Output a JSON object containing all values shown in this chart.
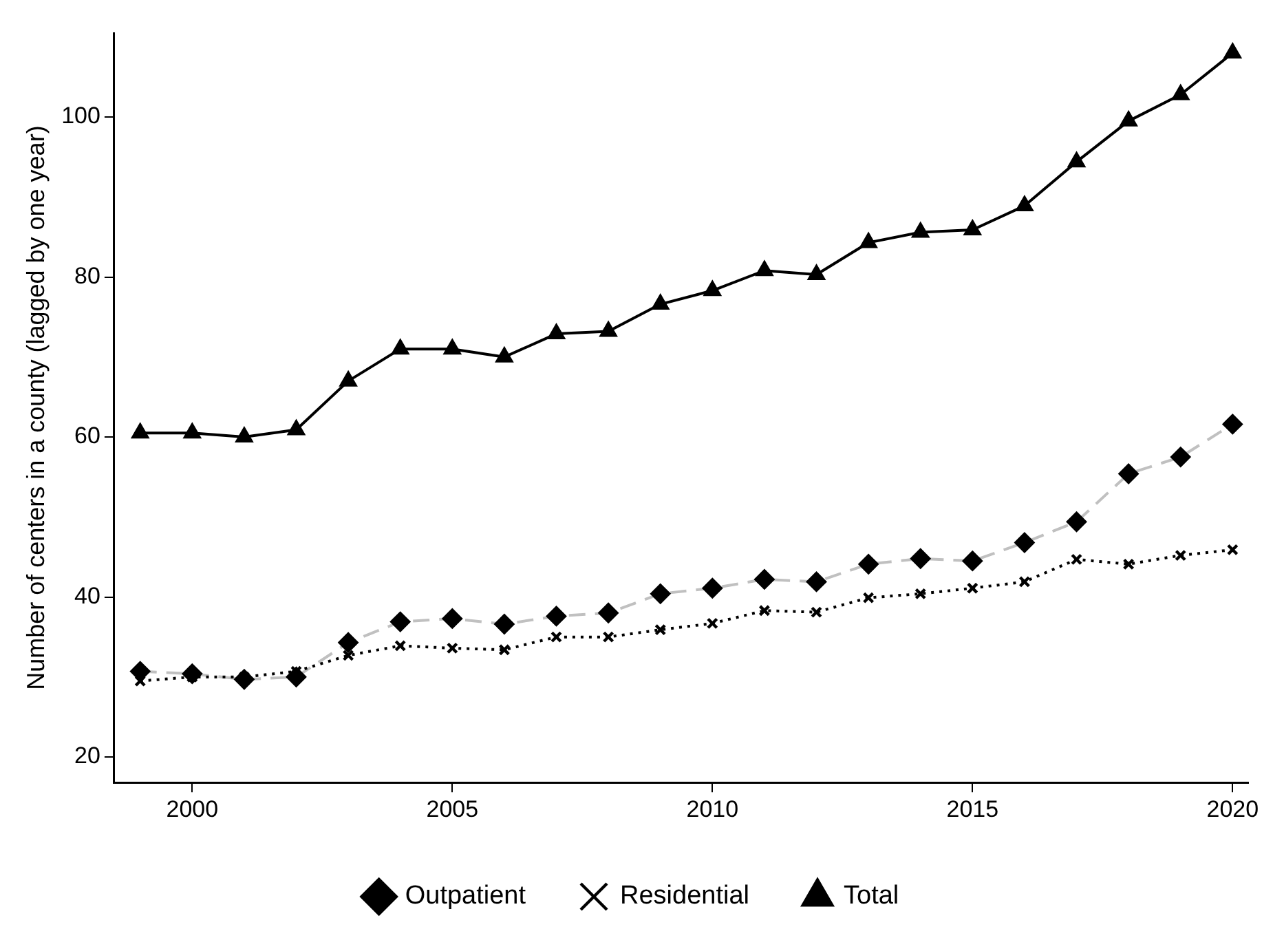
{
  "chart_data": {
    "type": "line",
    "ylabel": "Number of centers in a county (lagged by one year)",
    "x": [
      1999,
      2000,
      2001,
      2002,
      2003,
      2004,
      2005,
      2006,
      2007,
      2008,
      2009,
      2010,
      2011,
      2012,
      2013,
      2014,
      2015,
      2016,
      2017,
      2018,
      2019,
      2020
    ],
    "series": [
      {
        "name": "Outpatient",
        "color": "#c0c0c0",
        "marker": "diamond",
        "line_style": "dashed",
        "values": [
          30.7,
          30.4,
          29.7,
          30,
          34.3,
          36.9,
          37.3,
          36.6,
          37.6,
          38,
          40.4,
          41.1,
          42.2,
          41.9,
          44.1,
          44.8,
          44.5,
          46.8,
          49.4,
          55.4,
          57.5,
          61.6
        ]
      },
      {
        "name": "Residential",
        "color": "#000000",
        "marker": "cross",
        "line_style": "dotted",
        "values": [
          29.5,
          30,
          30,
          30.7,
          32.7,
          33.9,
          33.6,
          33.4,
          35,
          35,
          35.9,
          36.7,
          38.3,
          38.1,
          39.9,
          40.4,
          41.1,
          41.9,
          44.7,
          44.1,
          45.2,
          45.9
        ]
      },
      {
        "name": "Total",
        "color": "#000000",
        "marker": "triangle",
        "line_style": "solid",
        "values": [
          60.5,
          60.5,
          60,
          60.9,
          67,
          71,
          71,
          70,
          72.9,
          73.2,
          76.6,
          78.3,
          80.8,
          80.3,
          84.3,
          85.6,
          85.9,
          88.9,
          94.4,
          99.5,
          102.8,
          108
        ]
      }
    ],
    "xlim": [
      1998.5,
      2020.3
    ],
    "xticks": [
      2000,
      2005,
      2010,
      2015,
      2020
    ],
    "ylim": [
      16.8,
      110.5
    ],
    "yticks": [
      20,
      40,
      60,
      80,
      100
    ],
    "grid": false,
    "legend": "bottom"
  }
}
